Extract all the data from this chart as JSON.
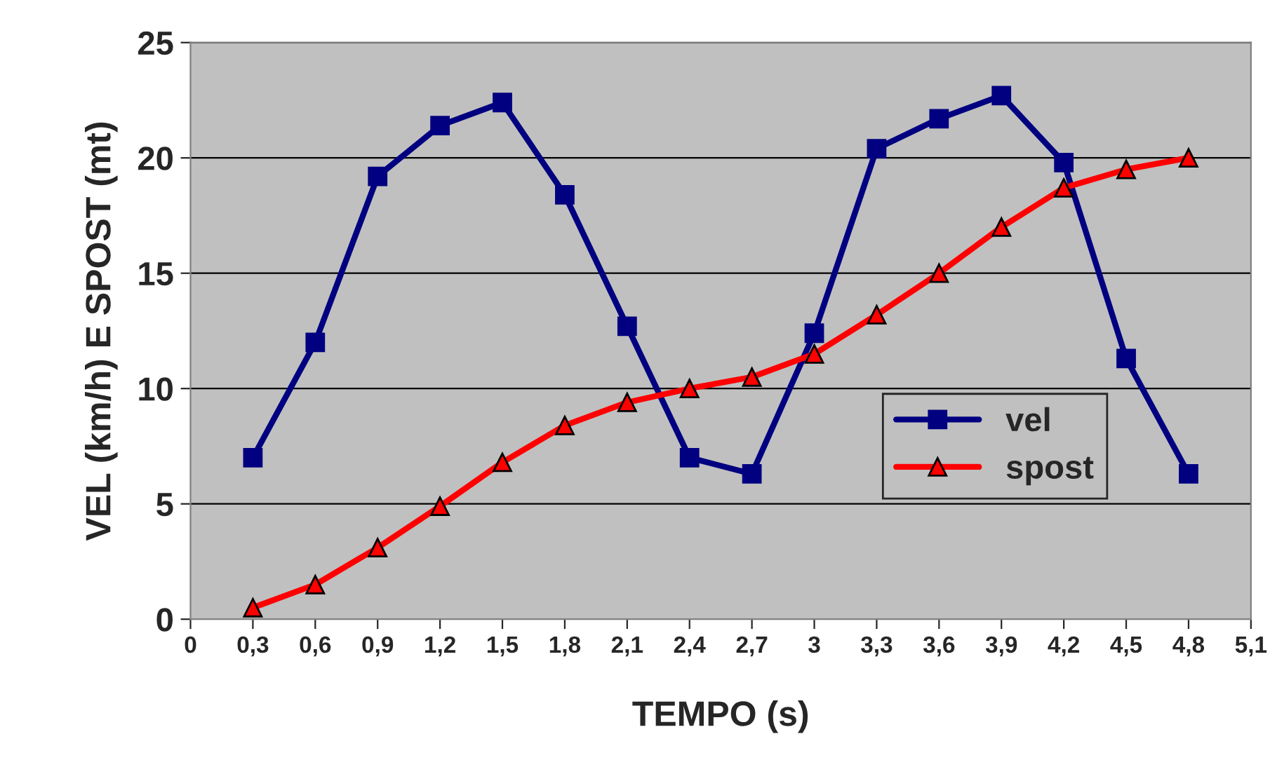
{
  "chart_data": {
    "type": "line",
    "xlabel": "TEMPO (s)",
    "ylabel": "VEL (km/h) E SPOST (mt)",
    "x": [
      0.3,
      0.6,
      0.9,
      1.2,
      1.5,
      1.8,
      2.1,
      2.4,
      2.7,
      3,
      3.3,
      3.6,
      3.9,
      4.2,
      4.5,
      4.8
    ],
    "series": [
      {
        "name": "vel",
        "color": "#000080",
        "marker": "square",
        "values": [
          7.0,
          12.0,
          19.2,
          21.4,
          22.4,
          18.4,
          12.7,
          7.0,
          6.3,
          12.4,
          20.4,
          21.7,
          22.7,
          19.8,
          11.3,
          6.3
        ]
      },
      {
        "name": "spost",
        "color": "#ff0000",
        "marker": "triangle",
        "values": [
          0.5,
          1.5,
          3.1,
          4.9,
          6.8,
          8.4,
          9.4,
          10.0,
          10.5,
          11.5,
          13.2,
          15.0,
          17.0,
          18.7,
          19.5,
          20.0
        ]
      }
    ],
    "xlim": [
      0,
      5.1
    ],
    "xticks": [
      0,
      {
        "value": 0.3,
        "label": "0,3"
      },
      {
        "value": 0.6,
        "label": "0,6"
      },
      {
        "value": 0.9,
        "label": "0,9"
      },
      {
        "value": 1.2,
        "label": "1,2"
      },
      {
        "value": 1.5,
        "label": "1,5"
      },
      {
        "value": 1.8,
        "label": "1,8"
      },
      {
        "value": 2.1,
        "label": "2,1"
      },
      {
        "value": 2.4,
        "label": "2,4"
      },
      {
        "value": 2.7,
        "label": "2,7"
      },
      3,
      {
        "value": 3.3,
        "label": "3,3"
      },
      {
        "value": 3.6,
        "label": "3,6"
      },
      {
        "value": 3.9,
        "label": "3,9"
      },
      {
        "value": 4.2,
        "label": "4,2"
      },
      {
        "value": 4.5,
        "label": "4,5"
      },
      {
        "value": 4.8,
        "label": "4,8"
      },
      {
        "value": 5.1,
        "label": "5,1"
      }
    ],
    "ylim": [
      0,
      25
    ],
    "yticks": [
      0,
      5,
      10,
      15,
      20,
      25
    ],
    "grid": "y",
    "legend": "right",
    "line_style": "solid"
  }
}
